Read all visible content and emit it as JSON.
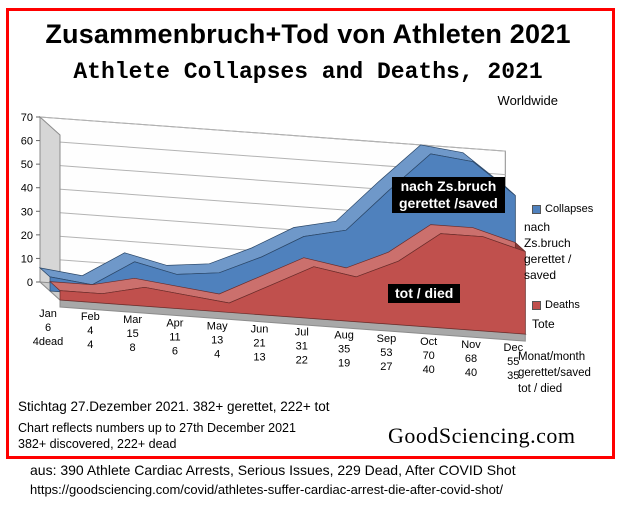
{
  "header": {
    "title_de": "Zusammenbruch+Tod von Athleten 2021",
    "title_en": "Athlete Collapses and Deaths, 2021",
    "scope_label": "Worldwide"
  },
  "chart_data": {
    "type": "area",
    "style": "3d-area",
    "title": "Athlete Collapses and Deaths, 2021",
    "categories": [
      "Jan",
      "Feb",
      "Mar",
      "Apr",
      "May",
      "Jun",
      "Jul",
      "Aug",
      "Sep",
      "Oct",
      "Nov",
      "Dec"
    ],
    "series": [
      {
        "name": "Collapses",
        "color": "#4f81bd",
        "values": [
          6,
          4,
          15,
          11,
          13,
          21,
          31,
          35,
          53,
          70,
          68,
          55
        ]
      },
      {
        "name": "Deaths",
        "color": "#c0504d",
        "values": [
          4,
          4,
          8,
          6,
          4,
          13,
          22,
          19,
          27,
          40,
          40,
          35
        ]
      }
    ],
    "x_label_rows": {
      "saved": [
        "6",
        "4",
        "15",
        "11",
        "13",
        "21",
        "31",
        "35",
        "53",
        "70",
        "68",
        "55"
      ],
      "died": [
        "4dead",
        "4",
        "8",
        "6",
        "4",
        "13",
        "22",
        "19",
        "27",
        "40",
        "40",
        "35"
      ]
    },
    "ylim": [
      0,
      70
    ],
    "yticks": [
      0,
      10,
      20,
      30,
      40,
      50,
      60,
      70
    ],
    "grid": true,
    "legend_position": "right"
  },
  "annotations": {
    "saved_box": "nach Zs.bruch\ngerettet /saved",
    "died_box": "tot / died"
  },
  "legend": {
    "collapses_label": "Collapses",
    "collapses_sub": "nach\nZs.bruch\ngerettet /\nsaved",
    "deaths_label": "Deaths",
    "deaths_sub": "Tote",
    "axis_key": "Monat/month\ngerettet/saved\ntot / died"
  },
  "footer": {
    "cutoff_de": "Stichtag 27.Dezember 2021. 382+ gerettet, 222+ tot",
    "cutoff_en_line1": "Chart reflects numbers up to 27th December 2021",
    "cutoff_en_line2": "382+ discovered, 222+ dead",
    "brand": "GoodSciencing.com"
  },
  "caption": {
    "source_line": "aus: 390 Athlete Cardiac Arrests, Serious Issues, 229 Dead, After COVID Shot",
    "url_line": "https://goodsciencing.com/covid/athletes-suffer-cardiac-arrest-die-after-covid-shot/"
  },
  "colors": {
    "frame": "#ff0000",
    "collapses": "#4f81bd",
    "deaths": "#c0504d",
    "annotation_bg": "#000000",
    "annotation_fg": "#ffffff"
  }
}
